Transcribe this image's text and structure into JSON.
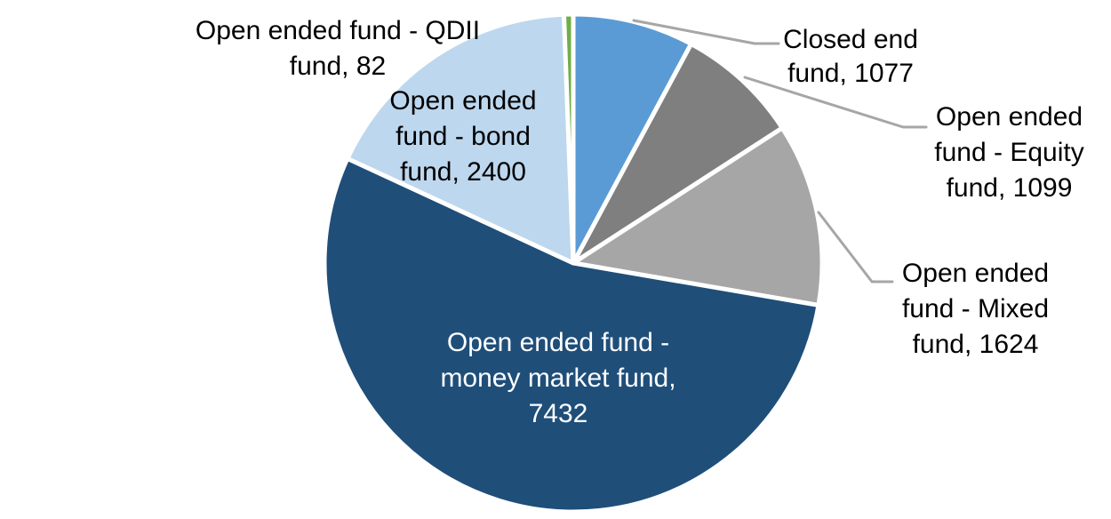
{
  "chart_data": {
    "type": "pie",
    "series": [
      {
        "name": "Closed end fund",
        "value": 1077,
        "color": "#5B9BD5",
        "label_lines": [
          "Closed end",
          "fund, 1077"
        ],
        "label_placement": "outside"
      },
      {
        "name": "Open ended fund - Equity fund",
        "value": 1099,
        "color": "#7F7F7F",
        "label_lines": [
          "Open ended",
          "fund - Equity",
          "fund, 1099"
        ],
        "label_placement": "outside"
      },
      {
        "name": "Open ended fund - Mixed fund",
        "value": 1624,
        "color": "#A6A6A6",
        "label_lines": [
          "Open ended",
          "fund - Mixed",
          "fund, 1624"
        ],
        "label_placement": "outside"
      },
      {
        "name": "Open ended fund - money market fund",
        "value": 7432,
        "color": "#1F4E79",
        "label_lines": [
          "Open ended fund -",
          "money market fund,",
          "7432"
        ],
        "label_placement": "inside"
      },
      {
        "name": "Open ended fund - bond fund",
        "value": 2400,
        "color": "#BDD7EE",
        "label_lines": [
          "Open ended",
          "fund - bond",
          "fund, 2400"
        ],
        "label_placement": "inside"
      },
      {
        "name": "Open ended fund - QDII fund",
        "value": 82,
        "color": "#70AD47",
        "label_lines": [
          "Open ended fund - QDII",
          "fund, 82"
        ],
        "label_placement": "outside"
      }
    ],
    "start_angle_deg": 0,
    "direction": "clockwise",
    "slice_border_color": "#FFFFFF",
    "leader_line_color": "#A6A6A6",
    "outside_label_color": "#000000",
    "inside_label_color": "#FFFFFF",
    "legend": "none",
    "background": "#FFFFFF"
  }
}
